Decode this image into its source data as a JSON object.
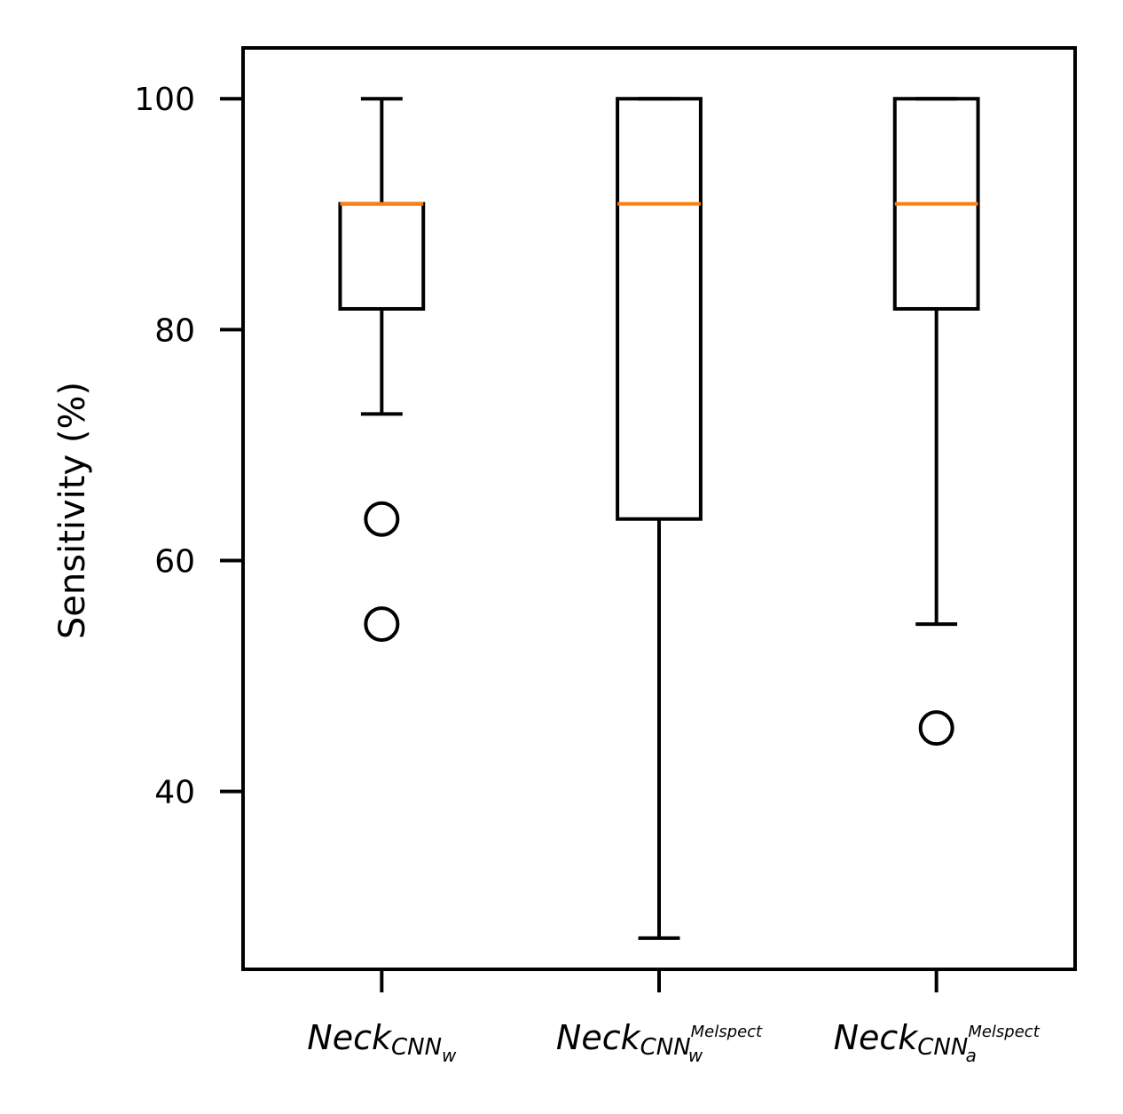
{
  "chart_data": {
    "type": "box",
    "title": "",
    "xlabel": "",
    "ylabel": "Sensitivity (%)",
    "ylim": [
      24.6,
      104.4
    ],
    "yticks": [
      40,
      60,
      80,
      100
    ],
    "grid": false,
    "colors": {
      "box": "#000000",
      "median": "#ff7f0e"
    },
    "categories": [
      {
        "base": "Neck",
        "sub": "CNN",
        "subsub": "w",
        "sup": ""
      },
      {
        "base": "Neck",
        "sub": "CNN",
        "subsub": "w",
        "sup": "Melspect"
      },
      {
        "base": "Neck",
        "sub": "CNN",
        "subsub": "a",
        "sup": "Melspect"
      }
    ],
    "series": [
      {
        "whisker_low": 72.7,
        "q1": 81.8,
        "median": 90.9,
        "q3": 90.9,
        "whisker_high": 100,
        "outliers": [
          63.6,
          54.5
        ]
      },
      {
        "whisker_low": 27.3,
        "q1": 63.6,
        "median": 90.9,
        "q3": 100,
        "whisker_high": 100,
        "outliers": []
      },
      {
        "whisker_low": 54.5,
        "q1": 81.8,
        "median": 90.9,
        "q3": 100,
        "whisker_high": 100,
        "outliers": [
          45.5
        ]
      }
    ]
  }
}
